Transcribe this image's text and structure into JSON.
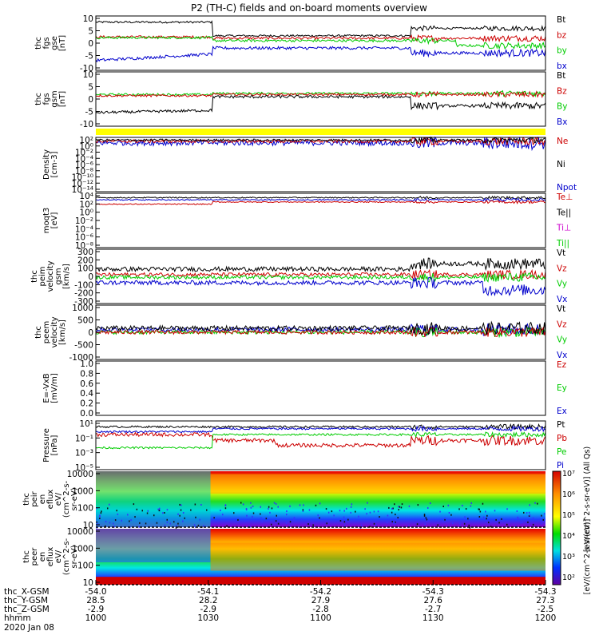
{
  "chart_data": {
    "type": "line",
    "title": "P2 (TH-C) fields and on-board moments overview",
    "panels": [
      {
        "id": "fgs_gse",
        "ylabel": [
          "thc",
          "fgs",
          "gse",
          "[nT]"
        ],
        "yticks": [
          "10",
          "5",
          "0",
          "-5",
          "-10"
        ],
        "ylim": [
          -11,
          11
        ],
        "legend": [
          {
            "name": "Bt",
            "color": "#000000"
          },
          {
            "name": "bz",
            "color": "#cc0000"
          },
          {
            "name": "by",
            "color": "#00cc00"
          },
          {
            "name": "bx",
            "color": "#0000cc"
          }
        ]
      },
      {
        "id": "fgs_gsm",
        "ylabel": [
          "thc",
          "fgs",
          "gsm",
          "[nT]"
        ],
        "yticks": [
          "10",
          "5",
          "0",
          "-5",
          "-10"
        ],
        "ylim": [
          -12,
          12
        ],
        "legend": [
          {
            "name": "Bt",
            "color": "#000000"
          },
          {
            "name": "Bz",
            "color": "#cc0000"
          },
          {
            "name": "By",
            "color": "#00cc00"
          },
          {
            "name": "Bx",
            "color": "#0000cc"
          }
        ]
      },
      {
        "id": "density",
        "ylabel": [
          "Density",
          "[cm-3]"
        ],
        "yticks": [
          "10²",
          "10⁰",
          "10⁻²",
          "10⁻⁴",
          "10⁻⁶",
          "10⁻⁸",
          "10⁻¹⁰",
          "10⁻¹²",
          "10⁻¹⁴"
        ],
        "legend": [
          {
            "name": "Ne",
            "color": "#cc0000"
          },
          {
            "name": "Ni",
            "color": "#000000"
          },
          {
            "name": "Npot",
            "color": "#0000cc"
          }
        ]
      },
      {
        "id": "temperature",
        "ylabel": [
          "moqt3",
          "[eV]"
        ],
        "yticks": [
          "10⁴",
          "10²",
          "10⁰",
          "10⁻²",
          "10⁻⁴",
          "10⁻⁶",
          "10⁻⁸"
        ],
        "legend": [
          {
            "name": "Te⊥",
            "color": "#cc0000"
          },
          {
            "name": "Te||",
            "color": "#000000"
          },
          {
            "name": "Ti⊥",
            "color": "#cc00cc"
          },
          {
            "name": "Ti||",
            "color": "#00cc00"
          }
        ]
      },
      {
        "id": "peim_velocity",
        "ylabel": [
          "thc",
          "peim",
          "velocity",
          "gsm",
          "[km/s]"
        ],
        "yticks": [
          "300",
          "200",
          "100",
          "0",
          "-100",
          "-200",
          "-300"
        ],
        "ylim": [
          -300,
          300
        ],
        "legend": [
          {
            "name": "Vt",
            "color": "#000000"
          },
          {
            "name": "Vz",
            "color": "#cc0000"
          },
          {
            "name": "Vy",
            "color": "#00cc00"
          },
          {
            "name": "Vx",
            "color": "#0000cc"
          }
        ]
      },
      {
        "id": "peem_velocity",
        "ylabel": [
          "thc",
          "peem",
          "velocity",
          "[km/s]"
        ],
        "yticks": [
          "1000",
          "500",
          "0",
          "-500",
          "-1000"
        ],
        "ylim": [
          -1000,
          1000
        ],
        "legend": [
          {
            "name": "Vt",
            "color": "#000000"
          },
          {
            "name": "Vz",
            "color": "#cc0000"
          },
          {
            "name": "Vy",
            "color": "#00cc00"
          },
          {
            "name": "Vx",
            "color": "#0000cc"
          }
        ]
      },
      {
        "id": "efield",
        "ylabel": [
          "E=-VxB",
          "[mV/m]"
        ],
        "yticks": [
          "1.0",
          "0.8",
          "0.6",
          "0.4",
          "0.2",
          "0.0"
        ],
        "ylim": [
          0,
          1
        ],
        "legend": [
          {
            "name": "Ez",
            "color": "#cc0000"
          },
          {
            "name": "Ey",
            "color": "#00cc00"
          },
          {
            "name": "Ex",
            "color": "#0000cc"
          }
        ]
      },
      {
        "id": "pressure",
        "ylabel": [
          "Pressure",
          "[nPa]"
        ],
        "yticks": [
          "10¹",
          "10⁻¹",
          "10⁻³",
          "10⁻⁵"
        ],
        "legend": [
          {
            "name": "Pt",
            "color": "#000000"
          },
          {
            "name": "Pb",
            "color": "#cc0000"
          },
          {
            "name": "Pe",
            "color": "#00cc00"
          },
          {
            "name": "Pi",
            "color": "#0000cc"
          }
        ]
      },
      {
        "id": "peir_eflux",
        "ylabel": [
          "thc",
          "peir",
          "en",
          "eflux",
          "eV/",
          "(cm^2-s-",
          "sr-eV)"
        ],
        "yticks": [
          "10000",
          "1000",
          "100",
          "10"
        ],
        "colorbar_label": "[eV/(cm^2-s-sr-eV)] (All Qs)"
      },
      {
        "id": "peer_eflux",
        "ylabel": [
          "thc",
          "peer",
          "en",
          "eflux",
          "eV/",
          "(cm^2-s-",
          "sr-eV)"
        ],
        "yticks": [
          "10000",
          "1000",
          "100",
          "10"
        ],
        "colorbar_label": "[eV/(cm^2-s-sr-eV)]"
      }
    ],
    "colorbar_ticks": [
      "10⁷",
      "10⁶",
      "10⁵",
      "10⁴",
      "10³",
      "10²"
    ],
    "xaxis": {
      "rows": [
        {
          "label": "thc_X-GSM",
          "values": [
            "-54.0",
            "-54.1",
            "-54.2",
            "-54.3",
            "-54.3"
          ]
        },
        {
          "label": "thc_Y-GSM",
          "values": [
            "28.5",
            "28.2",
            "27.9",
            "27.6",
            "27.3"
          ]
        },
        {
          "label": "thc_Z-GSM",
          "values": [
            "-2.9",
            "-2.9",
            "-2.8",
            "-2.7",
            "-2.5"
          ]
        },
        {
          "label": "hhmm",
          "values": [
            "1000",
            "1030",
            "1100",
            "1130",
            "1200"
          ]
        }
      ],
      "date": "2020 Jan 08"
    }
  }
}
